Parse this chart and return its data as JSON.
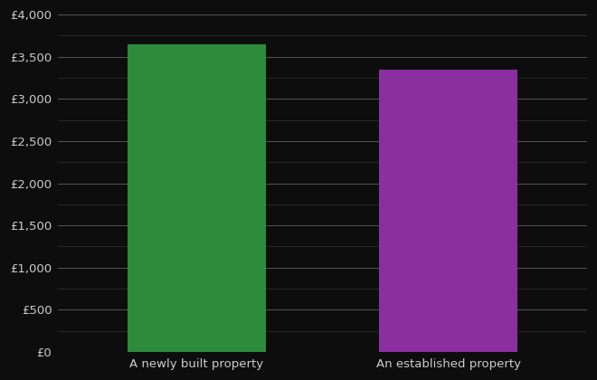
{
  "categories": [
    "A newly built property",
    "An established property"
  ],
  "values": [
    3650,
    3350
  ],
  "bar_colors": [
    "#2d8c3c",
    "#8b2fa0"
  ],
  "background_color": "#0d0d0d",
  "text_color": "#cccccc",
  "grid_color_major": "#555555",
  "grid_color_minor": "#333333",
  "ylim": [
    0,
    4000
  ],
  "ytick_major_step": 500,
  "ytick_minor_step": 250,
  "bar_width": 0.55,
  "xlabel": "",
  "ylabel": "",
  "label_fontsize": 9.5
}
